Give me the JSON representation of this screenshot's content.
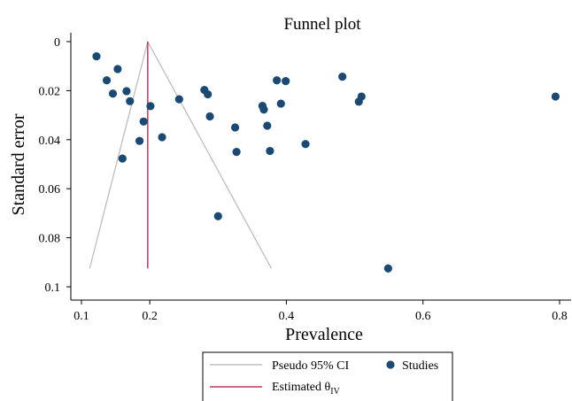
{
  "chart_data": {
    "type": "scatter",
    "title": "Funnel plot",
    "xlabel": "Prevalence",
    "ylabel": "Standard error",
    "xlim": [
      0.08,
      0.81
    ],
    "ylim": [
      0,
      0.1
    ],
    "y_axis_inverted": true,
    "grid": false,
    "legend_position": "bottom",
    "x_ticks": [
      0.1,
      0.2,
      0.4,
      0.6,
      0.8
    ],
    "x_tick_labels": [
      "0.1",
      "0.2",
      "0.4",
      "0.6",
      "0.8"
    ],
    "y_ticks": [
      0,
      0.02,
      0.04,
      0.06,
      0.08,
      0.1
    ],
    "y_tick_labels": [
      "0",
      "0.02",
      "0.04",
      "0.06",
      "0.08",
      "0.1"
    ],
    "estimate": 0.197,
    "pseudo_ci": {
      "apex": [
        0.197,
        0
      ],
      "left_end": [
        0.112,
        0.0925
      ],
      "right_end": [
        0.378,
        0.0925
      ]
    },
    "studies": [
      {
        "x": 0.122,
        "y": 0.006
      },
      {
        "x": 0.137,
        "y": 0.0158
      },
      {
        "x": 0.153,
        "y": 0.0112
      },
      {
        "x": 0.146,
        "y": 0.0212
      },
      {
        "x": 0.166,
        "y": 0.0202
      },
      {
        "x": 0.171,
        "y": 0.0243
      },
      {
        "x": 0.16,
        "y": 0.0477
      },
      {
        "x": 0.201,
        "y": 0.0263
      },
      {
        "x": 0.191,
        "y": 0.0326
      },
      {
        "x": 0.185,
        "y": 0.0405
      },
      {
        "x": 0.218,
        "y": 0.039
      },
      {
        "x": 0.243,
        "y": 0.0235
      },
      {
        "x": 0.28,
        "y": 0.0197
      },
      {
        "x": 0.285,
        "y": 0.0215
      },
      {
        "x": 0.288,
        "y": 0.0305
      },
      {
        "x": 0.325,
        "y": 0.035
      },
      {
        "x": 0.327,
        "y": 0.045
      },
      {
        "x": 0.3,
        "y": 0.0712
      },
      {
        "x": 0.365,
        "y": 0.0262
      },
      {
        "x": 0.367,
        "y": 0.0277
      },
      {
        "x": 0.372,
        "y": 0.0343
      },
      {
        "x": 0.386,
        "y": 0.0158
      },
      {
        "x": 0.399,
        "y": 0.0161
      },
      {
        "x": 0.392,
        "y": 0.0253
      },
      {
        "x": 0.376,
        "y": 0.0446
      },
      {
        "x": 0.428,
        "y": 0.0418
      },
      {
        "x": 0.482,
        "y": 0.0143
      },
      {
        "x": 0.506,
        "y": 0.0245
      },
      {
        "x": 0.51,
        "y": 0.0224
      },
      {
        "x": 0.549,
        "y": 0.0925
      },
      {
        "x": 0.794,
        "y": 0.0224
      }
    ],
    "legend": {
      "ci_label": "Pseudo 95% CI",
      "studies_label": "Studies",
      "estimate_label": "Estimated θ",
      "estimate_subscript": "IV"
    },
    "colors": {
      "studies": "#1a4a73",
      "estimate": "#c0395b",
      "pseudo_ci": "#bdbdbd",
      "axis": "#000000"
    }
  }
}
